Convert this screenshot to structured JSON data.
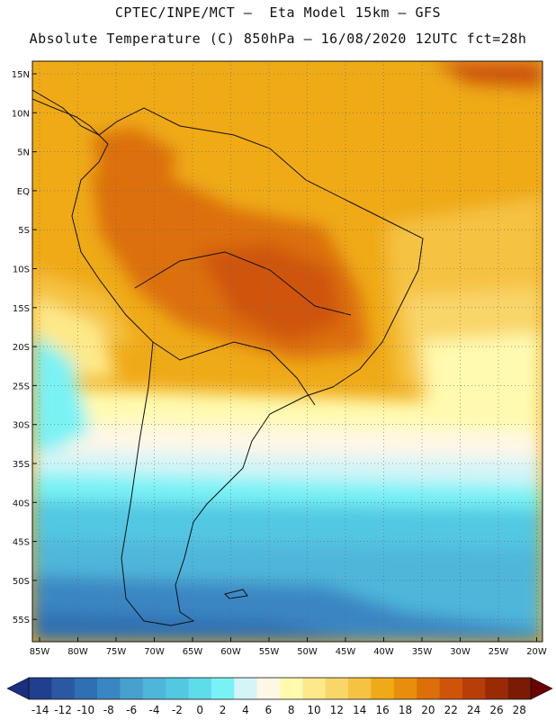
{
  "header": {
    "line1": "CPTEC/INPE/MCT –  Eta Model 15km – GFS",
    "line2": "Absolute Temperature (C) 850hPa – 16/08/2020 12UTC fct=28h"
  },
  "axes": {
    "lat_labels": [
      "15N",
      "10N",
      "5N",
      "EQ",
      "5S",
      "10S",
      "15S",
      "20S",
      "25S",
      "30S",
      "35S",
      "40S",
      "45S",
      "50S",
      "55S"
    ],
    "lon_labels": [
      "85W",
      "80W",
      "75W",
      "70W",
      "65W",
      "60W",
      "55W",
      "50W",
      "45W",
      "40W",
      "35W",
      "30W",
      "25W",
      "20W"
    ]
  },
  "colorbar": {
    "labels": [
      "-14",
      "-12",
      "-10",
      "-8",
      "-6",
      "-4",
      "-2",
      "0",
      "2",
      "4",
      "6",
      "8",
      "10",
      "12",
      "14",
      "16",
      "18",
      "20",
      "22",
      "24",
      "26",
      "28"
    ],
    "colors": [
      "#1f3f8f",
      "#2a58a3",
      "#2f6fb3",
      "#3a86c2",
      "#47a0cf",
      "#4fb6da",
      "#52c8e2",
      "#5ddcea",
      "#7af2f5",
      "#d4f4f7",
      "#fff7e6",
      "#fffab0",
      "#fde98a",
      "#f9d66a",
      "#f5c242",
      "#efaa18",
      "#e78f0d",
      "#dc6f0a",
      "#cf540a",
      "#b83d08",
      "#9a2a06",
      "#7a1c04"
    ],
    "low_arrow_color": "#1b2f80",
    "high_arrow_color": "#6b0000"
  }
}
